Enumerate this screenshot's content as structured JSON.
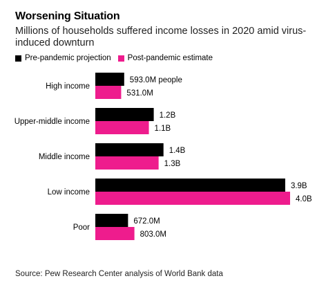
{
  "colors": {
    "pre": "#000000",
    "post": "#ee1c8d"
  },
  "chart_data": {
    "type": "bar",
    "orientation": "horizontal",
    "title": "Worsening Situation",
    "subtitle": "Millions of households suffered income losses in 2020 amid virus-induced downturn",
    "categories": [
      "High income",
      "Upper-middle income",
      "Middle income",
      "Low income",
      "Poor"
    ],
    "series": [
      {
        "name": "Pre-pandemic projection",
        "values": [
          593.0,
          1200,
          1400,
          3900,
          672.0
        ],
        "labels": [
          "593.0M people",
          "1.2B",
          "1.4B",
          "3.9B",
          "672.0M"
        ]
      },
      {
        "name": "Post-pandemic estimate",
        "values": [
          531.0,
          1100,
          1300,
          4000,
          803.0
        ],
        "labels": [
          "531.0M",
          "1.1B",
          "1.3B",
          "4.0B",
          "803.0M"
        ]
      }
    ],
    "xlim": [
      0,
      4000
    ],
    "grid": false,
    "legend": "top-left",
    "source": "Source: Pew Research Center analysis of World Bank data"
  }
}
